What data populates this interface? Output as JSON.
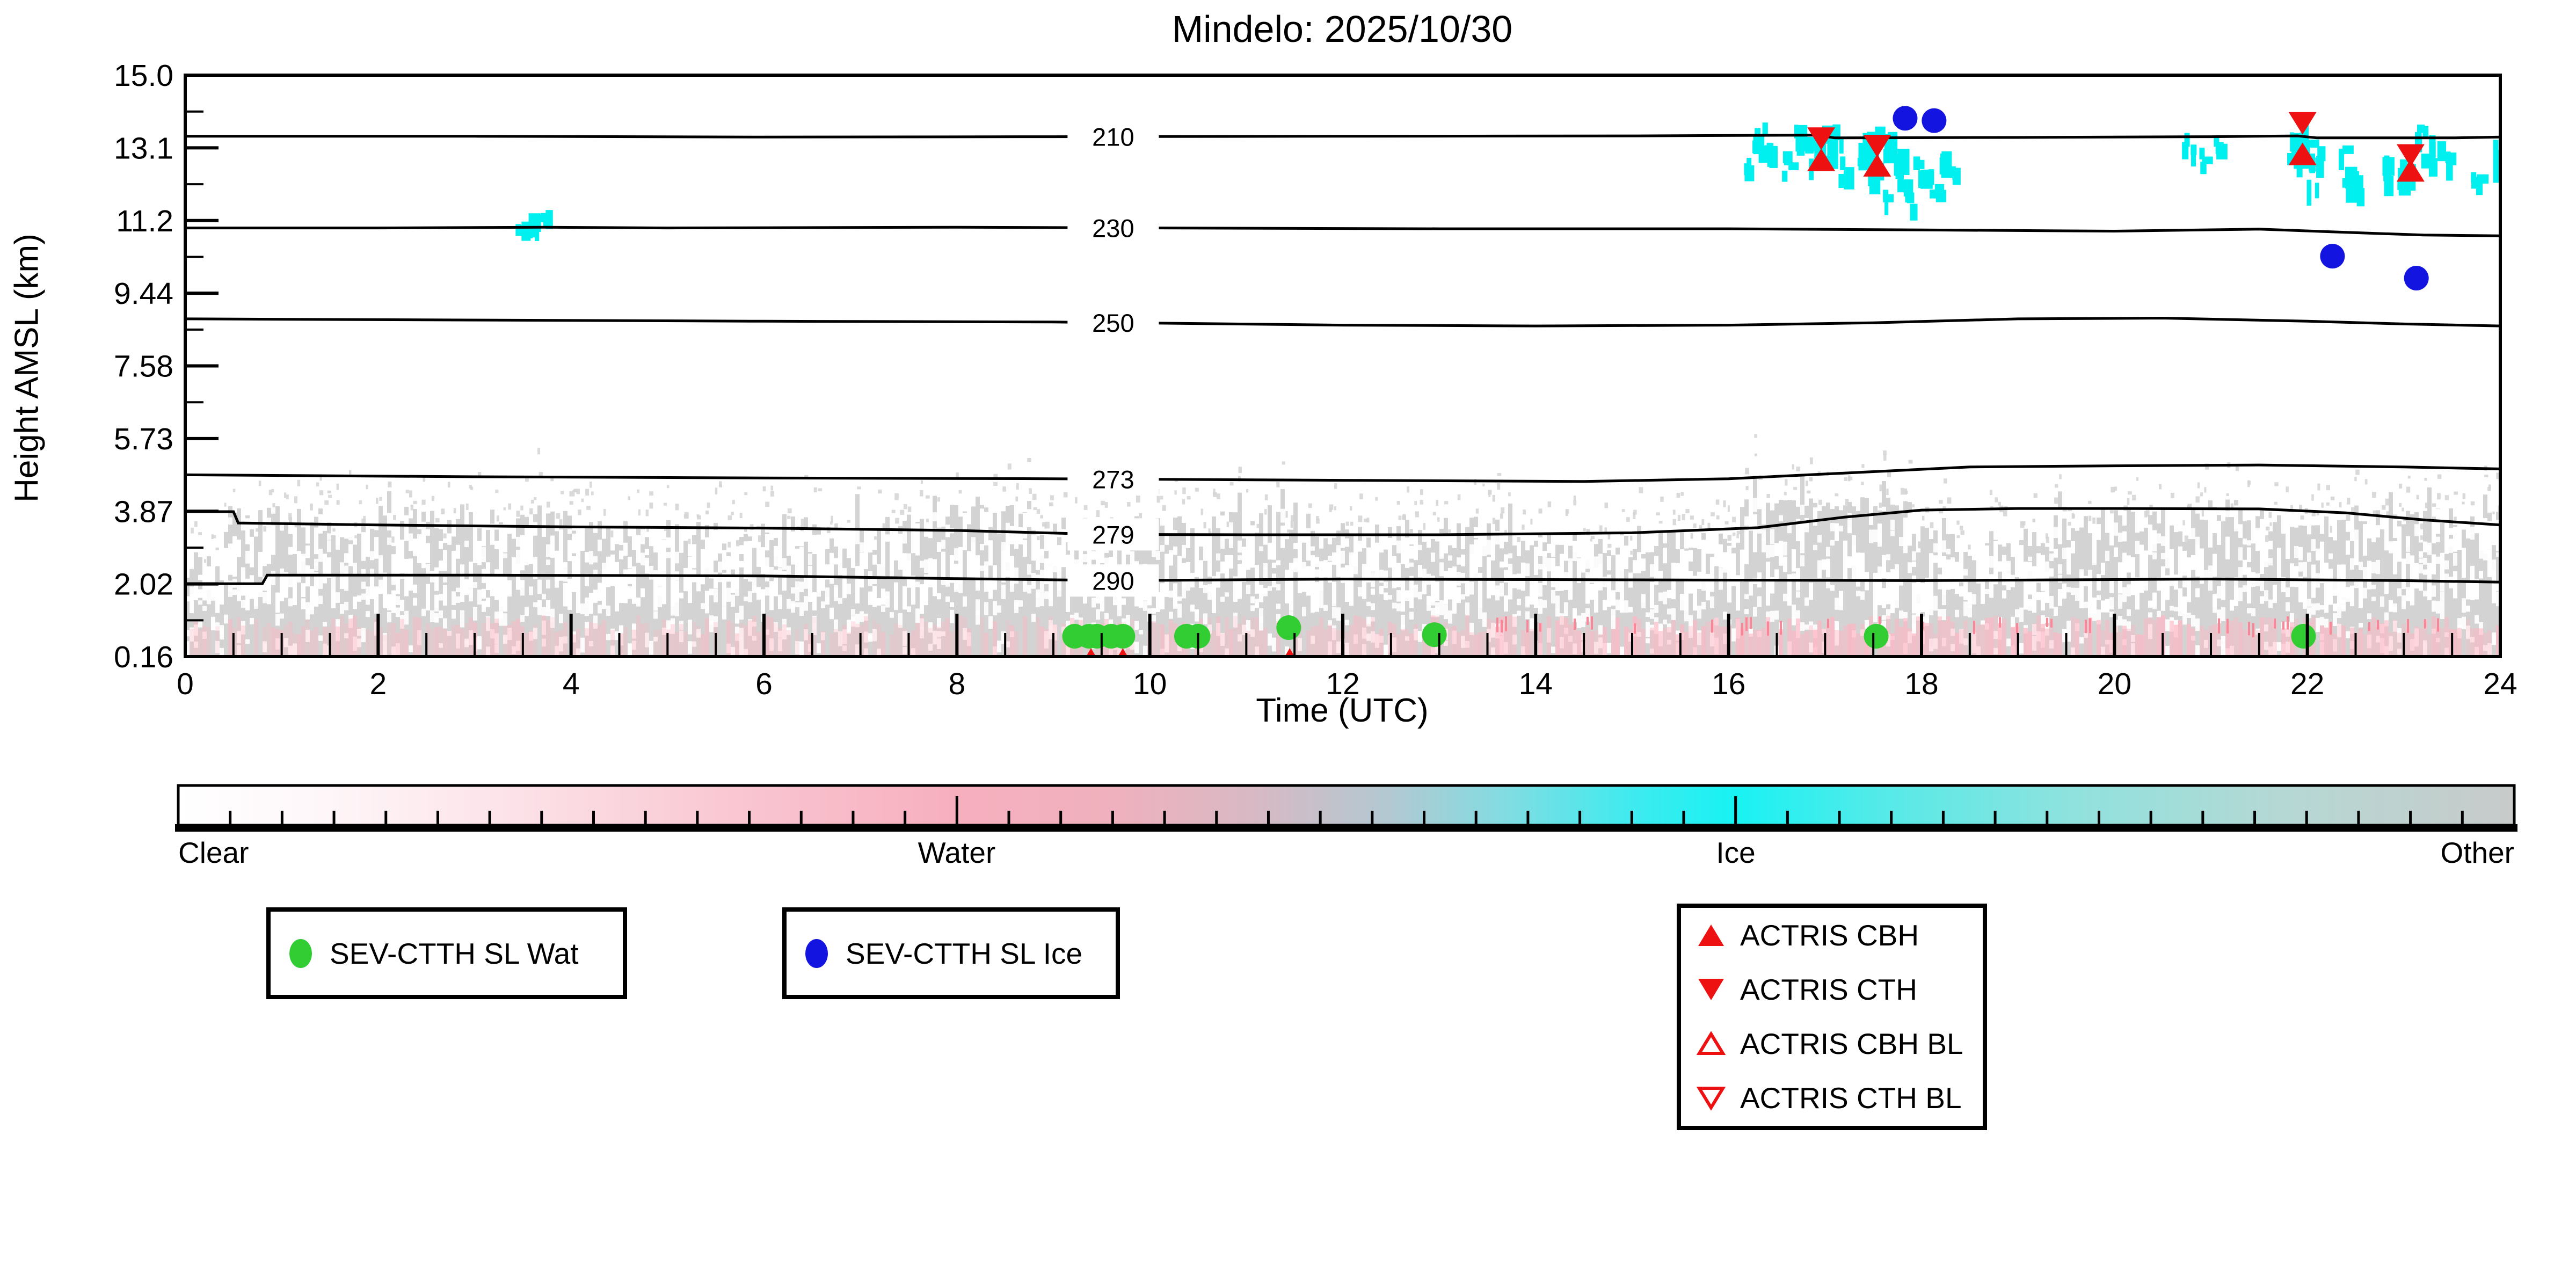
{
  "title": "Mindelo: 2025/10/30",
  "axes": {
    "xlabel": "Time (UTC)",
    "ylabel": "Height AMSL (km)",
    "x_range_hours": [
      0,
      24
    ],
    "y_range_km": [
      0.16,
      15.0
    ],
    "x_ticks": [
      {
        "label": "0",
        "t": 0
      },
      {
        "label": "2",
        "t": 2
      },
      {
        "label": "4",
        "t": 4
      },
      {
        "label": "6",
        "t": 6
      },
      {
        "label": "8",
        "t": 8
      },
      {
        "label": "10",
        "t": 10
      },
      {
        "label": "12",
        "t": 12
      },
      {
        "label": "14",
        "t": 14
      },
      {
        "label": "16",
        "t": 16
      },
      {
        "label": "18",
        "t": 18
      },
      {
        "label": "20",
        "t": 20
      },
      {
        "label": "22",
        "t": 22
      },
      {
        "label": "24",
        "t": 24
      }
    ],
    "y_ticks": [
      {
        "label": "15.0",
        "km": 15.0
      },
      {
        "label": "13.1",
        "km": 13.145
      },
      {
        "label": "11.2",
        "km": 11.29
      },
      {
        "label": "9.44",
        "km": 9.435
      },
      {
        "label": "7.58",
        "km": 7.58
      },
      {
        "label": "5.73",
        "km": 5.725
      },
      {
        "label": "3.87",
        "km": 3.87
      },
      {
        "label": "2.02",
        "km": 2.015
      },
      {
        "label": "0.16",
        "km": 0.16
      }
    ]
  },
  "chart_data": {
    "type": "heatmap",
    "description": "Time-height cloud phase classification with temperature contours (K) and cloud boundary markers",
    "x_unit": "hours UTC",
    "y_unit": "km AMSL",
    "colors": {
      "cloud_gray": "#d3d3d3",
      "cloud_pink": "#ffb6c3",
      "cloud_red_speck": "#ff8596",
      "cloud_cyan": "#00f0f0",
      "water_marker": "#32cd32",
      "ice_marker": "#1414e0",
      "actris_red": "#ee1111",
      "contour": "#000000"
    },
    "contours_K": [
      {
        "label": "210",
        "points": [
          [
            0,
            13.44
          ],
          [
            3,
            13.44
          ],
          [
            6,
            13.42
          ],
          [
            9,
            13.43
          ],
          [
            12,
            13.44
          ],
          [
            15,
            13.45
          ],
          [
            16.9,
            13.47
          ],
          [
            17.1,
            13.4
          ],
          [
            19,
            13.41
          ],
          [
            21,
            13.43
          ],
          [
            21.9,
            13.45
          ],
          [
            22.1,
            13.4
          ],
          [
            23.5,
            13.4
          ],
          [
            24,
            13.42
          ]
        ]
      },
      {
        "label": "230",
        "points": [
          [
            0,
            11.1
          ],
          [
            2,
            11.1
          ],
          [
            3.7,
            11.12
          ],
          [
            5,
            11.1
          ],
          [
            8,
            11.12
          ],
          [
            10,
            11.1
          ],
          [
            13,
            11.08
          ],
          [
            16,
            11.08
          ],
          [
            18,
            11.05
          ],
          [
            20,
            11.02
          ],
          [
            21.5,
            11.07
          ],
          [
            22.5,
            10.98
          ],
          [
            23.2,
            10.92
          ],
          [
            24,
            10.9
          ]
        ]
      },
      {
        "label": "250",
        "points": [
          [
            0,
            8.78
          ],
          [
            3,
            8.75
          ],
          [
            6,
            8.72
          ],
          [
            9,
            8.7
          ],
          [
            12,
            8.62
          ],
          [
            14,
            8.6
          ],
          [
            16,
            8.62
          ],
          [
            17.5,
            8.68
          ],
          [
            19,
            8.78
          ],
          [
            20.5,
            8.8
          ],
          [
            22,
            8.72
          ],
          [
            23,
            8.65
          ],
          [
            24,
            8.6
          ]
        ]
      },
      {
        "label": "273",
        "points": [
          [
            0,
            4.8
          ],
          [
            3,
            4.75
          ],
          [
            6,
            4.72
          ],
          [
            9,
            4.7
          ],
          [
            12,
            4.66
          ],
          [
            14.5,
            4.63
          ],
          [
            16,
            4.7
          ],
          [
            17.5,
            4.88
          ],
          [
            18.5,
            5.0
          ],
          [
            20,
            5.03
          ],
          [
            21.5,
            5.05
          ],
          [
            23,
            5.0
          ],
          [
            24,
            4.95
          ]
        ]
      },
      {
        "label": "279",
        "points": [
          [
            0,
            3.86
          ],
          [
            0.5,
            3.86
          ],
          [
            0.55,
            3.57
          ],
          [
            2,
            3.52
          ],
          [
            4,
            3.47
          ],
          [
            6,
            3.44
          ],
          [
            8,
            3.38
          ],
          [
            9.5,
            3.28
          ],
          [
            11,
            3.27
          ],
          [
            13,
            3.27
          ],
          [
            15,
            3.32
          ],
          [
            16.3,
            3.45
          ],
          [
            17.2,
            3.72
          ],
          [
            18,
            3.9
          ],
          [
            19,
            3.94
          ],
          [
            20,
            3.94
          ],
          [
            21.5,
            3.93
          ],
          [
            22.4,
            3.83
          ],
          [
            23.2,
            3.65
          ],
          [
            24,
            3.52
          ]
        ]
      },
      {
        "label": "290",
        "points": [
          [
            0,
            2.02
          ],
          [
            0.8,
            2.02
          ],
          [
            0.85,
            2.24
          ],
          [
            3,
            2.24
          ],
          [
            6,
            2.22
          ],
          [
            8,
            2.15
          ],
          [
            9.7,
            2.1
          ],
          [
            12,
            2.14
          ],
          [
            15,
            2.12
          ],
          [
            18,
            2.1
          ],
          [
            21,
            2.14
          ],
          [
            23,
            2.1
          ],
          [
            24,
            2.06
          ]
        ]
      }
    ],
    "contour_label_t": 9.62,
    "series": [
      {
        "id": "sev_wat",
        "label": "SEV-CTTH SL Wat",
        "marker": "circle",
        "color": "#32cd32",
        "points": [
          [
            9.22,
            0.68
          ],
          [
            9.37,
            0.68
          ],
          [
            9.45,
            0.68
          ],
          [
            9.6,
            0.68
          ],
          [
            9.72,
            0.68
          ],
          [
            10.38,
            0.68
          ],
          [
            10.5,
            0.68
          ],
          [
            11.44,
            0.9
          ],
          [
            12.95,
            0.72
          ],
          [
            17.53,
            0.68
          ],
          [
            21.96,
            0.68
          ]
        ]
      },
      {
        "id": "sev_ice",
        "label": "SEV-CTTH SL Ice",
        "marker": "circle",
        "color": "#1414e0",
        "points": [
          [
            17.83,
            13.9
          ],
          [
            18.13,
            13.84
          ],
          [
            22.26,
            10.38
          ],
          [
            23.13,
            9.82
          ]
        ]
      },
      {
        "id": "actris_cbh",
        "label": "ACTRIS CBH",
        "marker": "triangle-up",
        "color": "#ee1111",
        "points": [
          [
            16.96,
            12.84
          ],
          [
            17.54,
            12.7
          ],
          [
            21.95,
            12.99
          ],
          [
            23.07,
            12.57
          ]
        ],
        "clipped_points": [
          [
            9.39,
            0.2
          ],
          [
            9.72,
            0.2
          ],
          [
            11.45,
            0.2
          ]
        ]
      },
      {
        "id": "actris_cth",
        "label": "ACTRIS CTH",
        "marker": "triangle-down",
        "color": "#ee1111",
        "points": [
          [
            16.96,
            13.38
          ],
          [
            17.54,
            13.19
          ],
          [
            21.95,
            13.77
          ],
          [
            23.07,
            12.95
          ]
        ]
      },
      {
        "id": "actris_cbh_bl",
        "label": "ACTRIS CBH BL",
        "marker": "triangle-up-open",
        "color": "#ee1111",
        "points": []
      },
      {
        "id": "actris_cth_bl",
        "label": "ACTRIS CTH BL",
        "marker": "triangle-down-open",
        "color": "#ee1111",
        "points": []
      }
    ],
    "ice_patches": [
      [
        3.62,
        11.3,
        0.12,
        0.35,
        7
      ],
      [
        3.45,
        11.05,
        0.05,
        0.3,
        3
      ],
      [
        16.18,
        12.6,
        0.04,
        0.3,
        2
      ],
      [
        16.3,
        13.5,
        0.06,
        0.3,
        4
      ],
      [
        16.42,
        13.05,
        0.05,
        0.45,
        4
      ],
      [
        16.6,
        12.85,
        0.05,
        0.3,
        3
      ],
      [
        16.75,
        13.45,
        0.08,
        0.35,
        5
      ],
      [
        16.95,
        13.15,
        0.12,
        0.6,
        8
      ],
      [
        17.1,
        13.55,
        0.05,
        0.2,
        3
      ],
      [
        17.18,
        12.75,
        0.05,
        0.35,
        3
      ],
      [
        17.45,
        13.25,
        0.12,
        0.55,
        8
      ],
      [
        17.5,
        12.5,
        0.05,
        0.3,
        3
      ],
      [
        17.62,
        11.95,
        0.04,
        0.25,
        2
      ],
      [
        17.7,
        13.3,
        0.1,
        0.5,
        6
      ],
      [
        17.78,
        12.35,
        0.05,
        0.3,
        3
      ],
      [
        17.85,
        11.9,
        0.04,
        0.3,
        2
      ],
      [
        17.95,
        12.75,
        0.07,
        0.35,
        4
      ],
      [
        18.1,
        12.4,
        0.05,
        0.4,
        3
      ],
      [
        18.22,
        12.85,
        0.05,
        0.3,
        3
      ],
      [
        18.32,
        12.55,
        0.04,
        0.25,
        2
      ],
      [
        20.75,
        13.35,
        0.05,
        0.35,
        3
      ],
      [
        20.9,
        13.0,
        0.04,
        0.3,
        2
      ],
      [
        21.05,
        13.3,
        0.04,
        0.25,
        2
      ],
      [
        21.9,
        13.2,
        0.13,
        0.65,
        9
      ],
      [
        22.05,
        12.75,
        0.06,
        0.5,
        4
      ],
      [
        22.35,
        12.85,
        0.05,
        0.55,
        4
      ],
      [
        22.5,
        12.4,
        0.04,
        0.3,
        2
      ],
      [
        22.82,
        12.75,
        0.05,
        0.4,
        3
      ],
      [
        23.0,
        12.6,
        0.08,
        0.5,
        5
      ],
      [
        23.15,
        13.35,
        0.07,
        0.4,
        4
      ],
      [
        23.3,
        13.1,
        0.05,
        0.4,
        3
      ],
      [
        23.45,
        12.9,
        0.04,
        0.3,
        2
      ],
      [
        23.72,
        12.4,
        0.05,
        0.25,
        3
      ],
      [
        23.95,
        13.1,
        0.05,
        0.5,
        3
      ]
    ],
    "cloud_regions": [
      [
        0,
        0.45,
        2.5,
        0.35,
        0.2,
        0.5
      ],
      [
        0.45,
        1.15,
        3.6,
        0.4,
        0.35,
        0.55
      ],
      [
        1.15,
        2.25,
        3.5,
        0.55,
        0.5,
        0.55
      ],
      [
        2.25,
        3.3,
        3.55,
        0.5,
        0.5,
        0.55
      ],
      [
        3.3,
        4.4,
        3.55,
        0.45,
        0.45,
        0.55
      ],
      [
        4.4,
        6.2,
        3.15,
        0.5,
        0.45,
        0.5
      ],
      [
        6.2,
        7.8,
        3.3,
        0.5,
        0.4,
        0.5
      ],
      [
        7.8,
        8.75,
        3.75,
        0.3,
        0.25,
        0.55
      ],
      [
        8.75,
        10.6,
        3.3,
        0.45,
        0.35,
        0.6
      ],
      [
        10.6,
        12.3,
        3.4,
        0.5,
        0.4,
        0.55
      ],
      [
        12.3,
        13.6,
        3.3,
        0.45,
        0.4,
        0.55
      ],
      [
        13.6,
        16.1,
        3.0,
        0.35,
        0.35,
        0.75
      ],
      [
        16.1,
        17.9,
        4.05,
        0.18,
        0.08,
        0.8
      ],
      [
        17.9,
        19.4,
        3.1,
        0.4,
        0.35,
        0.8
      ],
      [
        19.4,
        20.8,
        3.45,
        0.5,
        0.35,
        0.75
      ],
      [
        20.8,
        21.35,
        3.9,
        0.3,
        0.15,
        0.7
      ],
      [
        21.35,
        22.6,
        3.35,
        0.45,
        0.3,
        0.7
      ],
      [
        22.6,
        24,
        3.5,
        0.45,
        0.3,
        0.7
      ]
    ]
  },
  "colorbar": {
    "labels": [
      {
        "text": "Clear",
        "frac": 0,
        "align": "left"
      },
      {
        "text": "Water",
        "frac": 0.332,
        "align": "center"
      },
      {
        "text": "Ice",
        "frac": 0.666,
        "align": "center"
      },
      {
        "text": "Other",
        "frac": 1,
        "align": "right"
      }
    ],
    "stops": [
      [
        0.0,
        "#ffffff"
      ],
      [
        0.06,
        "#fef7f9"
      ],
      [
        0.14,
        "#fce3e9"
      ],
      [
        0.24,
        "#f9c6d1"
      ],
      [
        0.332,
        "#f7afbe"
      ],
      [
        0.4,
        "#efb1bd"
      ],
      [
        0.46,
        "#d8b9c4"
      ],
      [
        0.52,
        "#b1c9d2"
      ],
      [
        0.57,
        "#7fdde2"
      ],
      [
        0.62,
        "#41eaee"
      ],
      [
        0.666,
        "#18f2f3"
      ],
      [
        0.73,
        "#55eae8"
      ],
      [
        0.81,
        "#8fe2de"
      ],
      [
        0.9,
        "#b5d8d4"
      ],
      [
        1.0,
        "#c8cbca"
      ]
    ],
    "tick_intervals": 45,
    "long_ticks": [
      15,
      30,
      45
    ]
  },
  "legends": {
    "wat": {
      "label": "SEV-CTTH SL Wat"
    },
    "ice": {
      "label": "SEV-CTTH SL Ice"
    },
    "actris": [
      {
        "label": "ACTRIS CBH",
        "marker": "triangle-up"
      },
      {
        "label": "ACTRIS CTH",
        "marker": "triangle-down"
      },
      {
        "label": "ACTRIS CBH BL",
        "marker": "triangle-up-open"
      },
      {
        "label": "ACTRIS CTH BL",
        "marker": "triangle-down-open"
      }
    ]
  }
}
